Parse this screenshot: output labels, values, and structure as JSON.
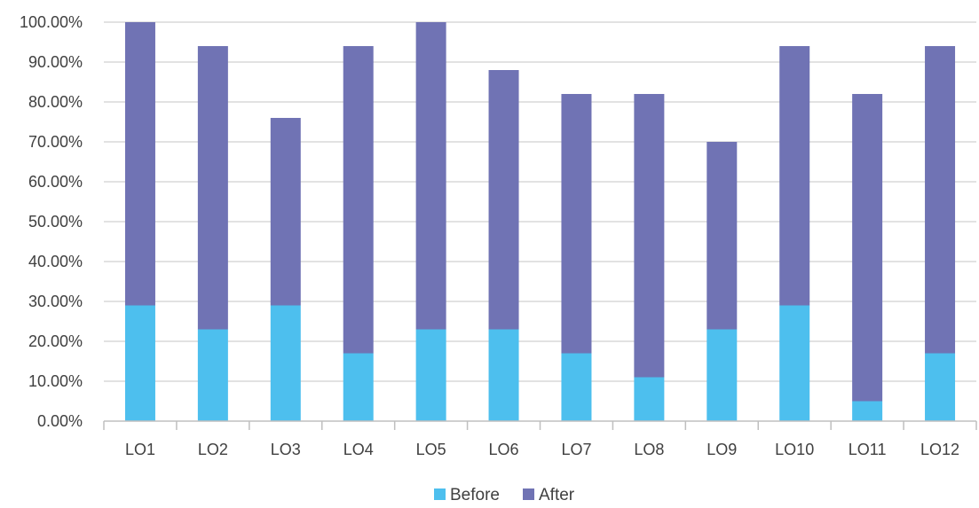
{
  "chart_data": {
    "type": "bar",
    "stacked": true,
    "categories": [
      "LO1",
      "LO2",
      "LO3",
      "LO4",
      "LO5",
      "LO6",
      "LO7",
      "LO8",
      "LO9",
      "LO10",
      "LO11",
      "LO12"
    ],
    "series": [
      {
        "name": "Before",
        "color": "#4dbfee",
        "values": [
          29,
          23,
          29,
          17,
          23,
          23,
          17,
          11,
          23,
          29,
          5,
          17
        ]
      },
      {
        "name": "After",
        "color": "#7073b4",
        "values": [
          71,
          71,
          47,
          77,
          77,
          65,
          65,
          71,
          47,
          65,
          77,
          77
        ]
      }
    ],
    "y_tick_labels": [
      "0.00%",
      "10.00%",
      "20.00%",
      "30.00%",
      "40.00%",
      "50.00%",
      "60.00%",
      "70.00%",
      "80.00%",
      "90.00%",
      "100.00%"
    ],
    "ylim": [
      0,
      100
    ],
    "y_unit": "percent",
    "grid": true,
    "legend_position": "bottom",
    "colors": {
      "gridline": "#d9d9d9",
      "axis": "#bfbfbf",
      "text": "#404040"
    }
  }
}
